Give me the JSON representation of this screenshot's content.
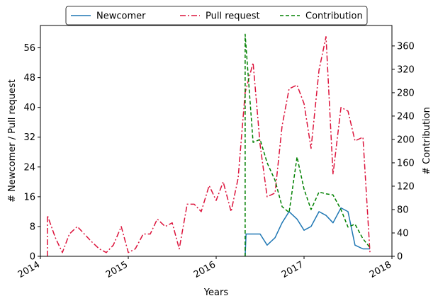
{
  "chart_data": {
    "type": "line",
    "xlabel": "Years",
    "ylabel_left": "# Newcomer / Pull request",
    "ylabel_right": "# Contribution",
    "x_range": [
      2014.0,
      2018.0
    ],
    "ylim_left": [
      0,
      62
    ],
    "ylim_right": [
      0,
      395
    ],
    "x_ticks": [
      {
        "value": 2014,
        "label": "2014"
      },
      {
        "value": 2015,
        "label": "2015"
      },
      {
        "value": 2016,
        "label": "2016"
      },
      {
        "value": 2017,
        "label": "2017"
      },
      {
        "value": 2018,
        "label": "2018"
      }
    ],
    "y_ticks_left": [
      0,
      8,
      16,
      24,
      32,
      40,
      48,
      56
    ],
    "y_ticks_right": [
      0,
      40,
      80,
      120,
      160,
      200,
      240,
      280,
      320,
      360
    ],
    "legend": {
      "placement": "top-center, outside plot"
    },
    "grid": false,
    "series": [
      {
        "name": "Newcomer",
        "axis": "left",
        "color": "#1f77b4",
        "style": "solid",
        "points": [
          [
            2016.33,
            0
          ],
          [
            2016.34,
            6
          ],
          [
            2016.42,
            6
          ],
          [
            2016.5,
            6
          ],
          [
            2016.58,
            3
          ],
          [
            2016.67,
            5
          ],
          [
            2016.75,
            9
          ],
          [
            2016.83,
            12
          ],
          [
            2016.92,
            10
          ],
          [
            2017.0,
            7
          ],
          [
            2017.08,
            8
          ],
          [
            2017.17,
            12
          ],
          [
            2017.25,
            11
          ],
          [
            2017.33,
            9
          ],
          [
            2017.42,
            13
          ],
          [
            2017.5,
            12
          ],
          [
            2017.58,
            3
          ],
          [
            2017.67,
            2
          ],
          [
            2017.75,
            2
          ]
        ]
      },
      {
        "name": "Pull request",
        "axis": "left",
        "color": "#dc143c",
        "style": "dashdot",
        "points": [
          [
            2014.08,
            0
          ],
          [
            2014.08,
            11
          ],
          [
            2014.17,
            5
          ],
          [
            2014.25,
            1
          ],
          [
            2014.33,
            6
          ],
          [
            2014.42,
            8
          ],
          [
            2014.5,
            6
          ],
          [
            2014.58,
            4
          ],
          [
            2014.67,
            2
          ],
          [
            2014.75,
            1
          ],
          [
            2014.83,
            3
          ],
          [
            2014.92,
            8
          ],
          [
            2015.0,
            1
          ],
          [
            2015.08,
            2
          ],
          [
            2015.17,
            6
          ],
          [
            2015.25,
            6
          ],
          [
            2015.33,
            10
          ],
          [
            2015.42,
            8
          ],
          [
            2015.5,
            9
          ],
          [
            2015.58,
            2
          ],
          [
            2015.67,
            14
          ],
          [
            2015.75,
            14
          ],
          [
            2015.83,
            12
          ],
          [
            2015.92,
            19
          ],
          [
            2016.0,
            15
          ],
          [
            2016.08,
            20
          ],
          [
            2016.17,
            12
          ],
          [
            2016.25,
            21
          ],
          [
            2016.33,
            44
          ],
          [
            2016.42,
            52
          ],
          [
            2016.5,
            30
          ],
          [
            2016.58,
            16
          ],
          [
            2016.67,
            17
          ],
          [
            2016.75,
            35
          ],
          [
            2016.83,
            45
          ],
          [
            2016.92,
            46
          ],
          [
            2017.0,
            41
          ],
          [
            2017.08,
            29
          ],
          [
            2017.17,
            50
          ],
          [
            2017.25,
            59
          ],
          [
            2017.33,
            22
          ],
          [
            2017.42,
            40
          ],
          [
            2017.5,
            39
          ],
          [
            2017.58,
            31
          ],
          [
            2017.67,
            32
          ],
          [
            2017.75,
            1
          ]
        ]
      },
      {
        "name": "Contribution",
        "axis": "right",
        "color": "#008000",
        "style": "dashed",
        "points": [
          [
            2016.33,
            0
          ],
          [
            2016.33,
            380
          ],
          [
            2016.42,
            195
          ],
          [
            2016.5,
            200
          ],
          [
            2016.58,
            160
          ],
          [
            2016.67,
            130
          ],
          [
            2016.75,
            85
          ],
          [
            2016.83,
            75
          ],
          [
            2016.92,
            170
          ],
          [
            2017.0,
            115
          ],
          [
            2017.08,
            80
          ],
          [
            2017.17,
            110
          ],
          [
            2017.25,
            107
          ],
          [
            2017.33,
            105
          ],
          [
            2017.42,
            80
          ],
          [
            2017.5,
            50
          ],
          [
            2017.58,
            55
          ],
          [
            2017.67,
            30
          ],
          [
            2017.75,
            15
          ]
        ]
      }
    ]
  }
}
